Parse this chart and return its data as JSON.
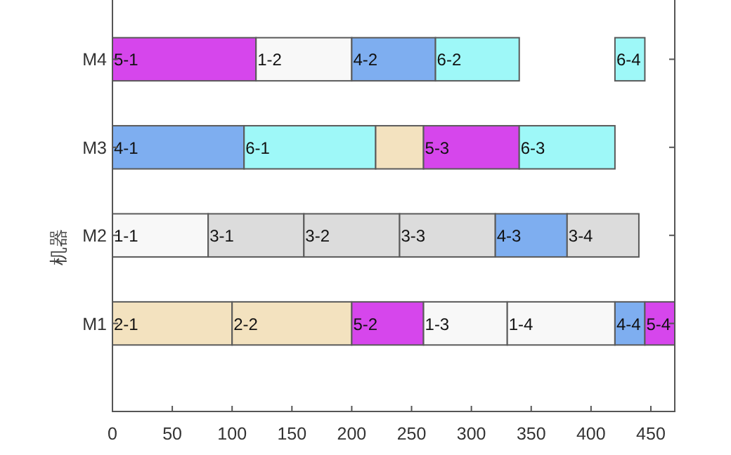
{
  "chart_data": {
    "type": "bar",
    "orientation": "horizontal",
    "ylabel": "机器",
    "categories": [
      "M4",
      "M3",
      "M2",
      "M1"
    ],
    "xlim": [
      0,
      470
    ],
    "xticks": [
      0,
      50,
      100,
      150,
      200,
      250,
      300,
      350,
      400,
      450
    ],
    "grid": false,
    "series": [
      {
        "values": [
          120,
          110,
          80,
          100
        ],
        "base": [
          0,
          0,
          0,
          0
        ],
        "colors": [
          "#d646ec",
          "#7eaef0",
          "#f8f8f8",
          "#f3e2bf"
        ]
      },
      {
        "values": [
          80,
          110,
          80,
          100
        ],
        "base": [
          120,
          110,
          80,
          100
        ],
        "colors": [
          "#f8f8f8",
          "#9ef8f8",
          "#dcdcdc",
          "#f3e2bf"
        ]
      },
      {
        "values": [
          70,
          40,
          80,
          60
        ],
        "base": [
          200,
          220,
          160,
          200
        ],
        "colors": [
          "#7eaef0",
          "#f3e2bf",
          "#dcdcdc",
          "#d646ec"
        ]
      },
      {
        "values": [
          70,
          80,
          80,
          70
        ],
        "base": [
          270,
          260,
          240,
          260
        ],
        "colors": [
          "#9ef8f8",
          "#d646ec",
          "#dcdcdc",
          "#f8f8f8"
        ]
      },
      {
        "values": [
          25,
          80,
          60,
          90
        ],
        "base": [
          420,
          340,
          320,
          330
        ],
        "colors": [
          "#9ef8f8",
          "#9ef8f8",
          "#7eaef0",
          "#f8f8f8"
        ]
      },
      {
        "values": [
          null,
          null,
          60,
          25
        ],
        "base": [
          null,
          null,
          380,
          420
        ],
        "colors": [
          null,
          null,
          "#dcdcdc",
          "#7eaef0"
        ]
      },
      {
        "values": [
          null,
          null,
          null,
          25
        ],
        "base": [
          null,
          null,
          null,
          445
        ],
        "colors": [
          null,
          null,
          null,
          "#d646ec"
        ]
      }
    ],
    "annotations": [
      {
        "text": "5-1",
        "x": 0,
        "y": "M4"
      },
      {
        "text": "1-2",
        "x": 120,
        "y": "M4"
      },
      {
        "text": "4-2",
        "x": 200,
        "y": "M4"
      },
      {
        "text": "6-2",
        "x": 270,
        "y": "M4"
      },
      {
        "text": "6-4",
        "x": 420,
        "y": "M4"
      },
      {
        "text": "4-1",
        "x": 0,
        "y": "M3"
      },
      {
        "text": "6-1",
        "x": 110,
        "y": "M3"
      },
      {
        "text": "5-3",
        "x": 260,
        "y": "M3"
      },
      {
        "text": "6-3",
        "x": 340,
        "y": "M3"
      },
      {
        "text": "1-1",
        "x": 0,
        "y": "M2"
      },
      {
        "text": "3-1",
        "x": 80,
        "y": "M2"
      },
      {
        "text": "3-2",
        "x": 160,
        "y": "M2"
      },
      {
        "text": "3-3",
        "x": 240,
        "y": "M2"
      },
      {
        "text": "4-3",
        "x": 320,
        "y": "M2"
      },
      {
        "text": "3-4",
        "x": 380,
        "y": "M2"
      },
      {
        "text": "2-1",
        "x": 0,
        "y": "M1"
      },
      {
        "text": "2-2",
        "x": 100,
        "y": "M1"
      },
      {
        "text": "5-2",
        "x": 200,
        "y": "M1"
      },
      {
        "text": "1-3",
        "x": 260,
        "y": "M1"
      },
      {
        "text": "1-4",
        "x": 330,
        "y": "M1"
      },
      {
        "text": "4-4",
        "x": 420,
        "y": "M1"
      },
      {
        "text": "5-4",
        "x": 445,
        "y": "M1"
      }
    ]
  }
}
